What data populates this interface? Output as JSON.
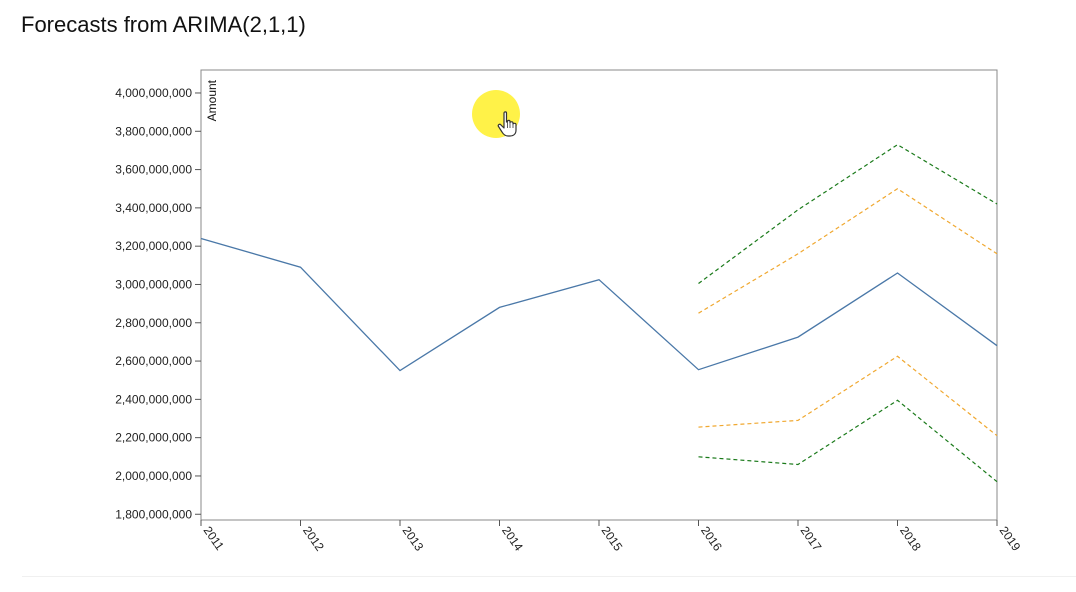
{
  "title": "Forecasts from ARIMA(2,1,1)",
  "colors": {
    "observed": "#4a78a8",
    "ci80": "#f0a830",
    "ci95": "#1a7a1a",
    "axis": "#555555"
  },
  "chart_data": {
    "type": "line",
    "title": "Forecasts from ARIMA(2,1,1)",
    "xlabel": "",
    "ylabel": "Amount",
    "categories": [
      "2011",
      "2012",
      "2013",
      "2014",
      "2015",
      "2016",
      "2017",
      "2018",
      "2019"
    ],
    "yticks": [
      1800000000,
      2000000000,
      2200000000,
      2400000000,
      2600000000,
      2800000000,
      3000000000,
      3200000000,
      3400000000,
      3600000000,
      3800000000,
      4000000000
    ],
    "ytick_labels": [
      "1,800,000,000",
      "2,000,000,000",
      "2,200,000,000",
      "2,400,000,000",
      "2,600,000,000",
      "2,800,000,000",
      "3,000,000,000",
      "3,200,000,000",
      "3,400,000,000",
      "3,600,000,000",
      "3,800,000,000",
      "4,000,000,000"
    ],
    "ylim": [
      1770000000,
      4120000000
    ],
    "grid": false,
    "series": [
      {
        "key": "observed",
        "style": "solid",
        "values": [
          3240000000,
          3090000000,
          2550000000,
          2880000000,
          3025000000,
          2555000000,
          2725000000,
          3060000000,
          2680000000
        ]
      },
      {
        "key": "upper80",
        "style": "dashed",
        "color": "ci80",
        "values": [
          null,
          null,
          null,
          null,
          null,
          2850000000,
          3160000000,
          3500000000,
          3160000000
        ]
      },
      {
        "key": "lower80",
        "style": "dashed",
        "color": "ci80",
        "values": [
          null,
          null,
          null,
          null,
          null,
          2255000000,
          2290000000,
          2625000000,
          2210000000
        ]
      },
      {
        "key": "upper95",
        "style": "dashed",
        "color": "ci95",
        "values": [
          null,
          null,
          null,
          null,
          null,
          3005000000,
          3390000000,
          3730000000,
          3420000000
        ]
      },
      {
        "key": "lower95",
        "style": "dashed",
        "color": "ci95",
        "values": [
          null,
          null,
          null,
          null,
          null,
          2100000000,
          2060000000,
          2395000000,
          1970000000
        ]
      }
    ]
  },
  "cursor": {
    "icon": "hand-pointer-icon"
  }
}
